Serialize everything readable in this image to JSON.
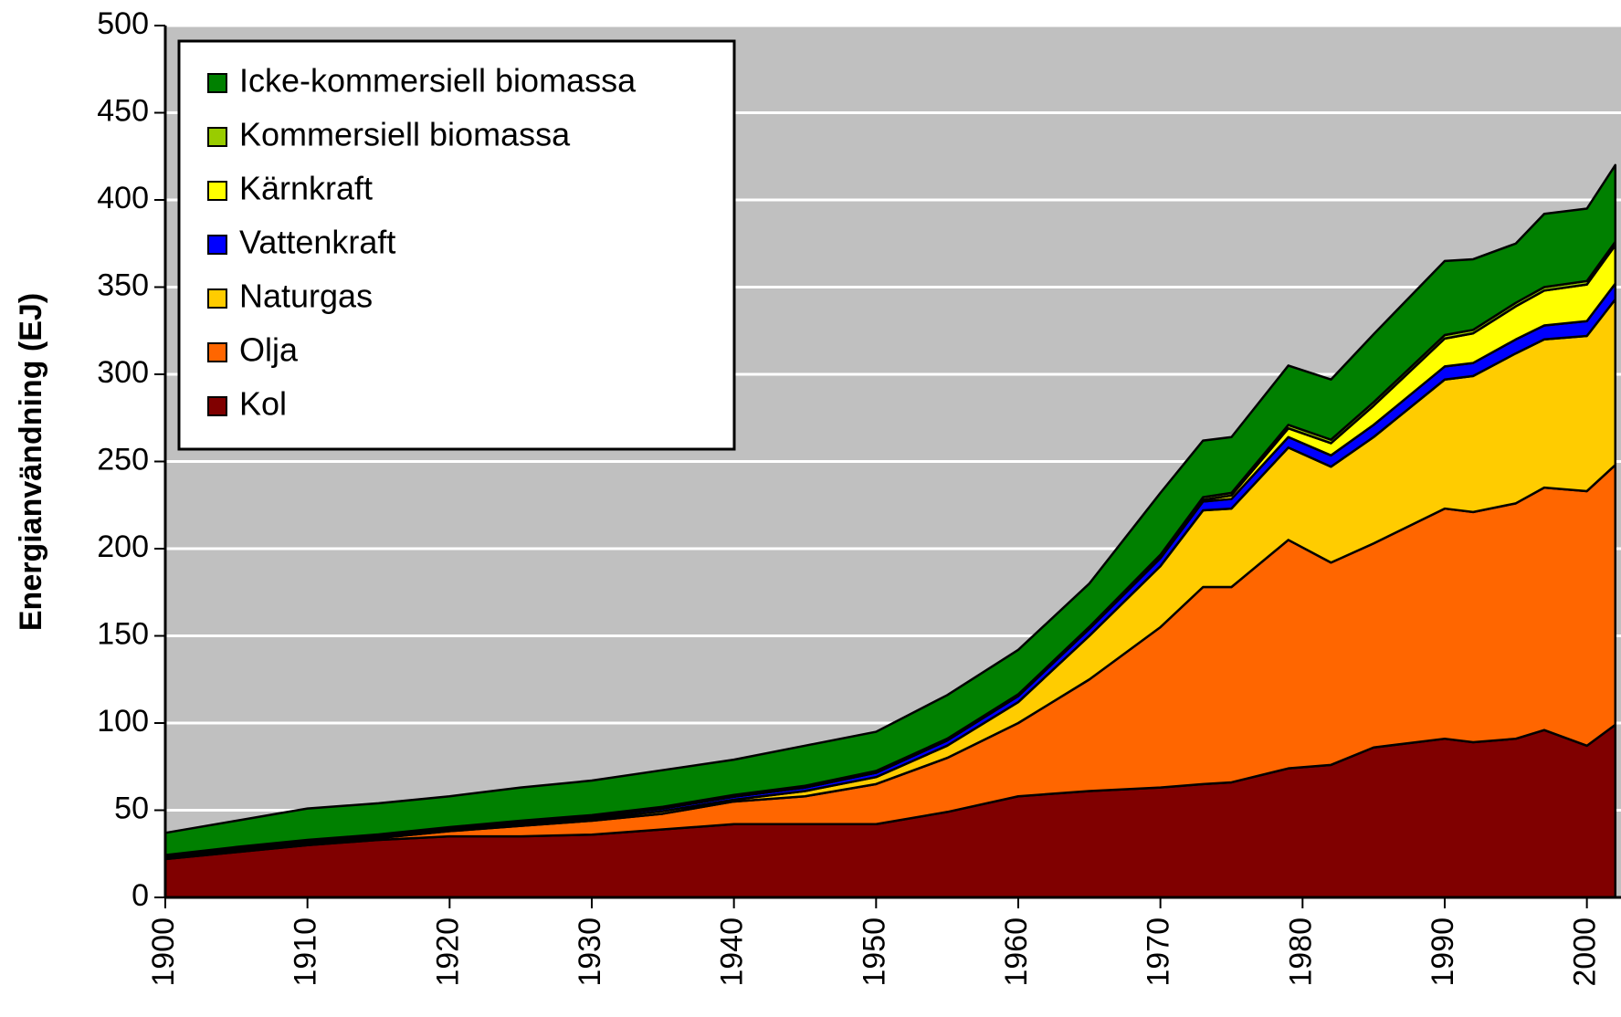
{
  "chart_data": {
    "type": "stacked-area",
    "y_label": "Energianvändning (EJ)",
    "x": [
      1900,
      1905,
      1910,
      1915,
      1920,
      1925,
      1930,
      1935,
      1940,
      1945,
      1950,
      1955,
      1960,
      1965,
      1970,
      1973,
      1975,
      1979,
      1982,
      1985,
      1990,
      1992,
      1995,
      1997,
      2000,
      2002
    ],
    "series": [
      {
        "name": "Kol",
        "color": "#800000",
        "values": [
          22,
          26,
          30,
          33,
          35,
          35,
          36,
          39,
          42,
          42,
          42,
          49,
          58,
          61,
          63,
          65,
          66,
          74,
          76,
          86,
          91,
          89,
          91,
          96,
          87,
          99
        ]
      },
      {
        "name": "Olja",
        "color": "#ff6600",
        "values": [
          1,
          1,
          1,
          1,
          3,
          6,
          8,
          9,
          13,
          16,
          23,
          31,
          42,
          64,
          92,
          113,
          112,
          131,
          116,
          117,
          132,
          132,
          135,
          139,
          146,
          149
        ]
      },
      {
        "name": "Naturgas",
        "color": "#ffcc00",
        "values": [
          0,
          0.5,
          0.5,
          0.5,
          0.5,
          1,
          1,
          1.5,
          1,
          3,
          4,
          7,
          12,
          25,
          35,
          44,
          45,
          53,
          55,
          61,
          74,
          78,
          86,
          85,
          89,
          95
        ]
      },
      {
        "name": "Vattenkraft",
        "color": "#0000ff",
        "values": [
          0.3,
          0.4,
          0.5,
          0.6,
          0.8,
          1,
          1.2,
          1.5,
          1.8,
          2,
          2.5,
          3,
          3.5,
          4,
          4.5,
          5,
          5.5,
          6,
          6.5,
          7,
          7.5,
          7.5,
          8,
          8,
          8.5,
          9
        ]
      },
      {
        "name": "Kärnkraft",
        "color": "#ffff00",
        "values": [
          0,
          0,
          0,
          0,
          0,
          0,
          0,
          0,
          0,
          0,
          0,
          0,
          0,
          0.2,
          0.5,
          1,
          2,
          5,
          7,
          11,
          16,
          17,
          19,
          20,
          21,
          22
        ]
      },
      {
        "name": "Kommersiell biomassa",
        "color": "#99cc00",
        "values": [
          1,
          1,
          1,
          1,
          1,
          1,
          1,
          1,
          1,
          1,
          1,
          1,
          1,
          1,
          1.5,
          1.5,
          1.5,
          2,
          2,
          2,
          2,
          2,
          2,
          2,
          2,
          2
        ]
      },
      {
        "name": "Icke-kommersiell biomassa",
        "color": "#008000",
        "values": [
          12.7,
          15.1,
          18,
          17.9,
          17.7,
          19,
          19.8,
          21,
          20.2,
          23,
          22.5,
          25,
          25.5,
          24.8,
          35.5,
          32.5,
          32,
          34,
          34.5,
          39,
          42.5,
          40.5,
          34,
          42,
          41.5,
          44
        ]
      }
    ],
    "xlim": [
      1900,
      2002.4
    ],
    "xticks": [
      1900,
      1910,
      1920,
      1930,
      1940,
      1950,
      1960,
      1970,
      1980,
      1990,
      2000
    ],
    "ylim": [
      0,
      500
    ],
    "yticks": [
      0,
      50,
      100,
      150,
      200,
      250,
      300,
      350,
      400,
      450,
      500
    ],
    "grid": true,
    "plot_background": "#c0c0c0",
    "legend": "top-left"
  }
}
